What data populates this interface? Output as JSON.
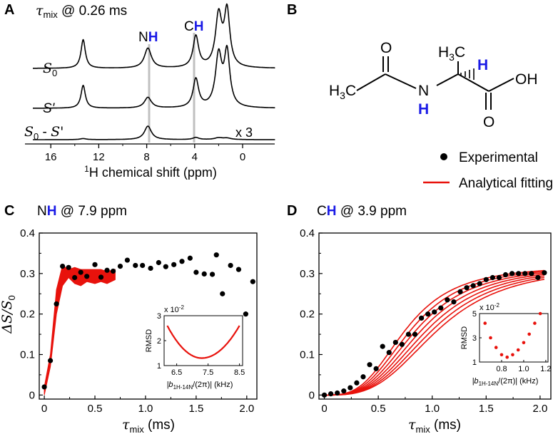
{
  "panel_letters": {
    "a": "A",
    "b": "B",
    "c": "C",
    "d": "D"
  },
  "colors": {
    "accent_blue": "#1a1ae6",
    "fit_red": "#e8120c",
    "gray_marker": "#c0c0c0"
  },
  "panel_a": {
    "title_sym": "τ",
    "title_sub": "mix",
    "title_rest": " @ 0.26 ms",
    "peak_labels": {
      "nh_prefix": "N",
      "nh_h": "H",
      "ch_prefix": "C",
      "ch_h": "H"
    },
    "traces": {
      "s0": {
        "label": "S",
        "sub": "0"
      },
      "sprime": {
        "label": "S'"
      },
      "diff": {
        "label_a": "S",
        "sub_a": "0",
        "label_mid": " - ",
        "label_b": "S'",
        "scale": "x 3"
      }
    },
    "xaxis": {
      "label_pre": "1",
      "label": "H chemical shift (ppm)",
      "ticks": [
        "16",
        "12",
        "8",
        "4",
        "0"
      ]
    }
  },
  "panel_b": {
    "atoms": {
      "methyl_left": "H3C",
      "oxygen_top": "O",
      "nh_n": "N",
      "nh_h": "H",
      "methyl_top": "H3C",
      "alpha_h": "H",
      "oh": "OH",
      "oxygen_bottom": "O"
    },
    "legend": {
      "experimental": "Experimental",
      "fitting": "Analytical fitting"
    }
  },
  "chart_data": [
    {
      "type": "scatter",
      "panel": "C",
      "title_prefix": "N",
      "title_h": "H",
      "title_rest": " @ 7.9 ppm",
      "xlabel": "τmix (ms)",
      "ylabel": "ΔS/S0",
      "xlim": [
        -0.05,
        2.1
      ],
      "ylim": [
        -0.01,
        0.4
      ],
      "xticks": [
        "0",
        "0.5",
        "1.0",
        "1.5",
        "2.0"
      ],
      "yticks": [
        "0",
        "0.1",
        "0.2",
        "0.3",
        "0.4"
      ],
      "experimental": {
        "x": [
          0.0,
          0.06,
          0.12,
          0.18,
          0.24,
          0.3,
          0.36,
          0.42,
          0.5,
          0.56,
          0.62,
          0.68,
          0.75,
          0.82,
          0.9,
          0.97,
          1.05,
          1.13,
          1.2,
          1.28,
          1.36,
          1.44,
          1.5,
          1.58,
          1.66,
          1.7,
          1.76,
          1.84,
          1.92,
          1.99,
          2.06
        ],
        "y": [
          0.02,
          0.085,
          0.225,
          0.318,
          0.315,
          0.29,
          0.303,
          0.293,
          0.322,
          0.291,
          0.308,
          0.306,
          0.318,
          0.333,
          0.32,
          0.32,
          0.313,
          0.327,
          0.317,
          0.322,
          0.33,
          0.338,
          0.303,
          0.299,
          0.298,
          0.346,
          0.25,
          0.32,
          0.31,
          0.2,
          0.28
        ]
      },
      "fit_band": {
        "x": [
          0.0,
          0.06,
          0.12,
          0.18,
          0.24,
          0.3,
          0.36,
          0.42,
          0.5,
          0.56,
          0.62,
          0.7
        ],
        "lower": [
          0.0,
          0.07,
          0.2,
          0.27,
          0.29,
          0.275,
          0.27,
          0.28,
          0.275,
          0.28,
          0.275,
          0.285
        ],
        "upper": [
          0.02,
          0.1,
          0.26,
          0.32,
          0.31,
          0.315,
          0.31,
          0.31,
          0.31,
          0.31,
          0.305,
          0.31
        ]
      },
      "inset": {
        "type": "line",
        "scale_label": "x 10",
        "scale_exp": "-2",
        "ylabel": "RMSD",
        "xlabel_pre": "|b",
        "xlabel_sub": "1H-14N",
        "xlabel_post": "/(2π)| (kHz)",
        "xlim": [
          6.1,
          8.6
        ],
        "ylim": [
          1,
          3
        ],
        "xticks": [
          "6.5",
          "7.5",
          "8.5"
        ],
        "yticks": [
          "1",
          "2",
          "3"
        ],
        "curve_min": [
          7.3,
          1.3
        ],
        "curve_ends": [
          [
            6.2,
            2.6
          ],
          [
            8.5,
            2.6
          ]
        ]
      }
    },
    {
      "type": "line",
      "panel": "D",
      "title_prefix": "C",
      "title_h": "H",
      "title_rest": " @ 3.9 ppm",
      "xlabel": "τmix (ms)",
      "xlim": [
        -0.05,
        2.1
      ],
      "ylim": [
        -0.01,
        0.4
      ],
      "xticks": [
        "0",
        "0.5",
        "1.0",
        "1.5",
        "2.0"
      ],
      "yticks": [
        "0",
        "0.1",
        "0.2",
        "0.3",
        "0.4"
      ],
      "experimental": {
        "x": [
          0.0,
          0.06,
          0.12,
          0.18,
          0.24,
          0.3,
          0.36,
          0.42,
          0.48,
          0.54,
          0.6,
          0.66,
          0.72,
          0.78,
          0.84,
          0.9,
          0.96,
          1.02,
          1.08,
          1.14,
          1.2,
          1.26,
          1.32,
          1.38,
          1.44,
          1.5,
          1.56,
          1.62,
          1.68,
          1.74,
          1.8,
          1.86,
          1.92,
          1.98,
          2.04
        ],
        "y": [
          0.0,
          0.003,
          0.005,
          0.01,
          0.018,
          0.03,
          0.045,
          0.075,
          0.065,
          0.12,
          0.105,
          0.13,
          0.125,
          0.15,
          0.15,
          0.19,
          0.2,
          0.205,
          0.215,
          0.235,
          0.23,
          0.255,
          0.265,
          0.27,
          0.275,
          0.285,
          0.29,
          0.29,
          0.297,
          0.3,
          0.3,
          0.3,
          0.3,
          0.29,
          0.302
        ]
      },
      "fit_curves": {
        "plateau": 0.32,
        "count": 7,
        "half_rise_ms_range": [
          0.75,
          1.05
        ]
      },
      "inset": {
        "type": "scatter",
        "scale_label": "x 10",
        "scale_exp": "-2",
        "ylabel": "RMSD",
        "xlabel_pre": "|b",
        "xlabel_sub": "1H-14N",
        "xlabel_post": "/(2π)| (kHz)",
        "xlim": [
          0.6,
          1.22
        ],
        "ylim": [
          1,
          5
        ],
        "xticks": [
          "0.8",
          "1.0",
          "1.2"
        ],
        "yticks": [
          "1",
          "3",
          "5"
        ],
        "points_x": [
          0.65,
          0.7,
          0.75,
          0.8,
          0.85,
          0.9,
          0.95,
          1.0,
          1.05,
          1.1,
          1.15
        ],
        "points_y": [
          4.2,
          3.0,
          2.2,
          1.6,
          1.4,
          1.6,
          2.0,
          2.6,
          3.3,
          4.2,
          5.0
        ]
      }
    }
  ]
}
